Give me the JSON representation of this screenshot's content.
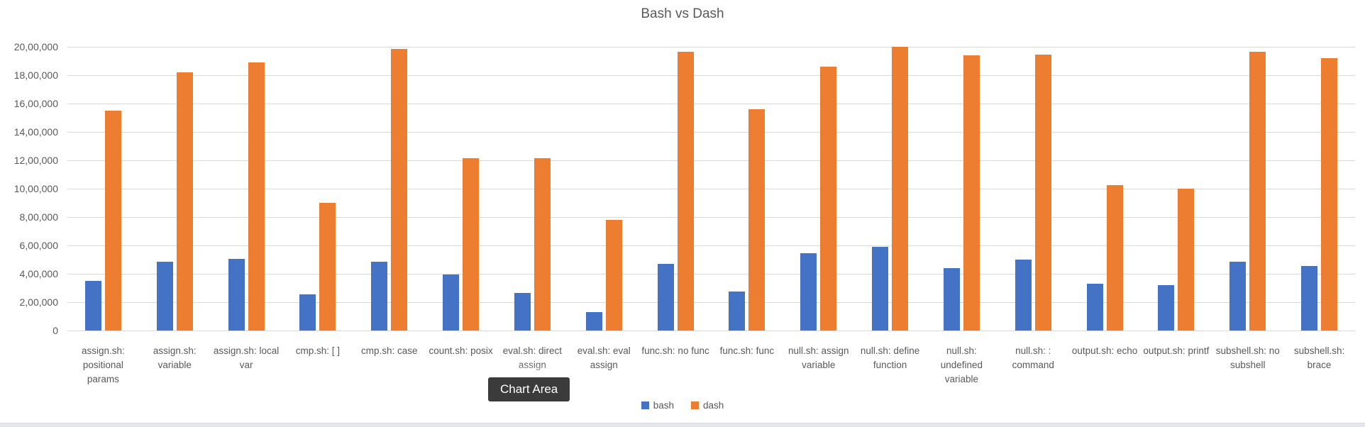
{
  "tooltip": {
    "label": "Chart Area"
  },
  "chart_data": {
    "type": "bar",
    "title": "Bash vs Dash",
    "categories": [
      "assign.sh: positional params",
      "assign.sh: variable",
      "assign.sh: local var",
      "cmp.sh: [ ]",
      "cmp.sh: case",
      "count.sh: posix",
      "eval.sh: direct assign",
      "eval.sh: eval assign",
      "func.sh: no func",
      "func.sh: func",
      "null.sh: assign variable",
      "null.sh: define function",
      "null.sh: undefined variable",
      "null.sh: : command",
      "output.sh: echo",
      "output.sh: printf",
      "subshell.sh: no subshell",
      "subshell.sh: brace"
    ],
    "series": [
      {
        "name": "bash",
        "color": "#4472C4",
        "values": [
          350000,
          485000,
          505000,
          255000,
          485000,
          395000,
          265000,
          130000,
          470000,
          275000,
          545000,
          590000,
          440000,
          500000,
          330000,
          320000,
          485000,
          455000
        ]
      },
      {
        "name": "dash",
        "color": "#ED7D31",
        "values": [
          1550000,
          1820000,
          1890000,
          900000,
          1985000,
          1215000,
          1215000,
          780000,
          1965000,
          1560000,
          1860000,
          2000000,
          1940000,
          1945000,
          1025000,
          1000000,
          1965000,
          1920000
        ]
      }
    ],
    "ylim": [
      0,
      2000000
    ],
    "ytick_step": 200000,
    "yticks": [
      "20,00,000",
      "18,00,000",
      "16,00,000",
      "14,00,000",
      "12,00,000",
      "10,00,000",
      "8,00,000",
      "6,00,000",
      "4,00,000",
      "2,00,000",
      "0"
    ],
    "grid": true,
    "legend_position": "bottom"
  }
}
